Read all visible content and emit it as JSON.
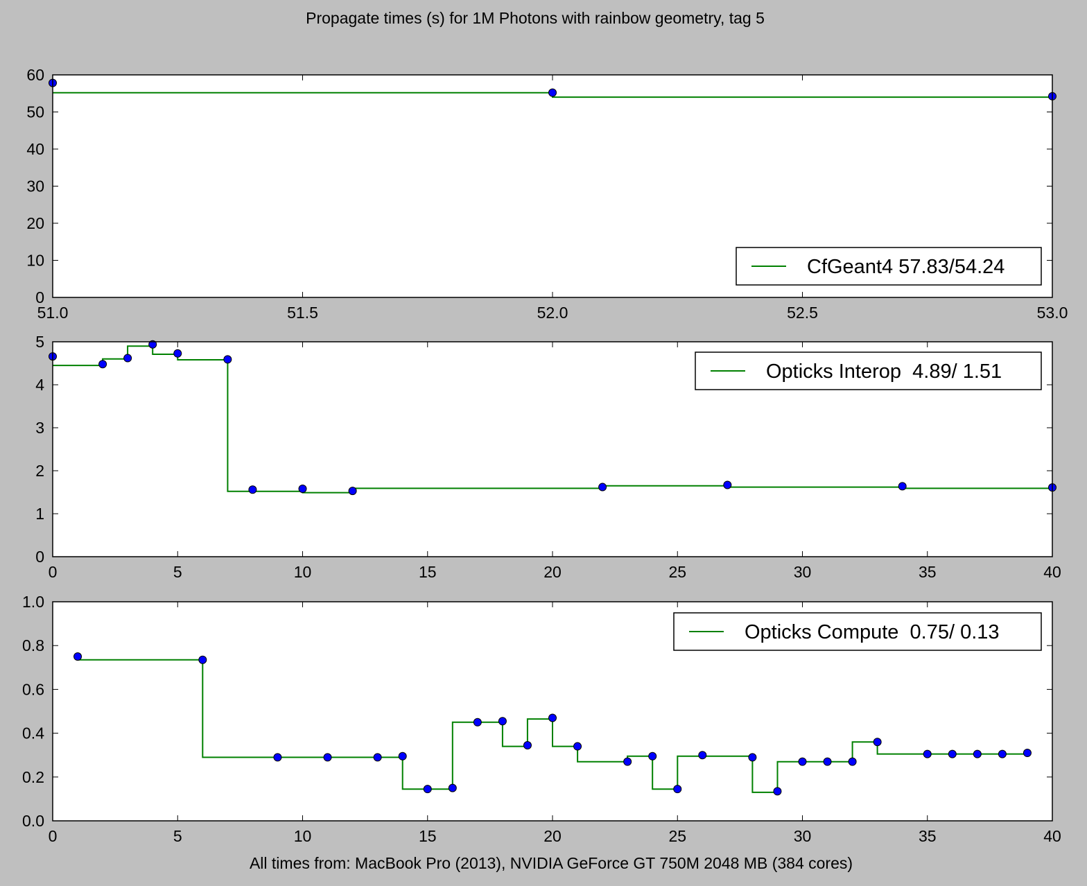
{
  "chart_data": {
    "title": "Propagate times (s) for 1M Photons with rainbow geometry, tag 5",
    "xlabel": "All times from: MacBook Pro (2013), NVIDIA GeForce GT 750M 2048 MB (384 cores)",
    "colors": {
      "line": "#008000",
      "marker": "#0000ff",
      "background": "#bfbfbf",
      "axes": "#ffffff"
    },
    "panels": [
      {
        "type": "line",
        "legend": "CfGeant4 57.83/54.24",
        "legend_loc": "lower-right",
        "xlim": [
          51.0,
          53.0
        ],
        "ylim": [
          0,
          60
        ],
        "xticks": [
          "51.0",
          "51.5",
          "52.0",
          "52.5",
          "53.0"
        ],
        "yticks": [
          "0",
          "10",
          "20",
          "30",
          "40",
          "50",
          "60"
        ],
        "points": {
          "x": [
            51,
            52,
            53
          ],
          "y": [
            57.83,
            55.2,
            54.24
          ]
        },
        "steps": [
          {
            "x0": 51,
            "x1": 52,
            "y": 55.2
          },
          {
            "x0": 52,
            "x1": 53,
            "y": 54.0
          }
        ]
      },
      {
        "type": "line",
        "legend": "Opticks Interop  4.89/ 1.51",
        "legend_loc": "upper-right",
        "xlim": [
          0,
          40
        ],
        "ylim": [
          0,
          5
        ],
        "xticks": [
          "0",
          "5",
          "10",
          "15",
          "20",
          "25",
          "30",
          "35",
          "40"
        ],
        "yticks": [
          "0",
          "1",
          "2",
          "3",
          "4",
          "5"
        ],
        "points": {
          "x": [
            0,
            2,
            3,
            4,
            5,
            7,
            8,
            10,
            12,
            22,
            27,
            34,
            40
          ],
          "y": [
            4.66,
            4.48,
            4.62,
            4.94,
            4.73,
            4.59,
            1.56,
            1.58,
            1.53,
            1.62,
            1.67,
            1.64,
            1.61
          ]
        },
        "steps": [
          {
            "x0": 0,
            "x1": 2,
            "y": 4.45
          },
          {
            "x0": 2,
            "x1": 3,
            "y": 4.6
          },
          {
            "x0": 3,
            "x1": 4,
            "y": 4.9
          },
          {
            "x0": 4,
            "x1": 5,
            "y": 4.71
          },
          {
            "x0": 5,
            "x1": 7,
            "y": 4.58
          },
          {
            "x0": 7,
            "x1": 10,
            "y": 1.52
          },
          {
            "x0": 10,
            "x1": 12,
            "y": 1.49
          },
          {
            "x0": 12,
            "x1": 22,
            "y": 1.59
          },
          {
            "x0": 22,
            "x1": 27,
            "y": 1.65
          },
          {
            "x0": 27,
            "x1": 34,
            "y": 1.62
          },
          {
            "x0": 34,
            "x1": 40,
            "y": 1.59
          }
        ]
      },
      {
        "type": "line",
        "legend": "Opticks Compute  0.75/ 0.13",
        "legend_loc": "upper-right",
        "xlim": [
          0,
          40
        ],
        "ylim": [
          0.0,
          1.0
        ],
        "xticks": [
          "0",
          "5",
          "10",
          "15",
          "20",
          "25",
          "30",
          "35",
          "40"
        ],
        "yticks": [
          "0.0",
          "0.2",
          "0.4",
          "0.6",
          "0.8",
          "1.0"
        ],
        "points": {
          "x": [
            1,
            6,
            9,
            11,
            13,
            14,
            15,
            16,
            17,
            18,
            19,
            20,
            21,
            23,
            24,
            25,
            26,
            28,
            29,
            30,
            31,
            32,
            33,
            35,
            36,
            37,
            38,
            39
          ],
          "y": [
            0.75,
            0.735,
            0.29,
            0.29,
            0.29,
            0.295,
            0.145,
            0.15,
            0.45,
            0.455,
            0.345,
            0.47,
            0.34,
            0.27,
            0.295,
            0.145,
            0.3,
            0.29,
            0.135,
            0.27,
            0.27,
            0.27,
            0.36,
            0.305,
            0.305,
            0.305,
            0.305,
            0.31
          ]
        },
        "steps": [
          {
            "x0": 1,
            "x1": 6,
            "y": 0.735
          },
          {
            "x0": 6,
            "x1": 14,
            "y": 0.29
          },
          {
            "x0": 14,
            "x1": 16,
            "y": 0.145
          },
          {
            "x0": 16,
            "x1": 18,
            "y": 0.45
          },
          {
            "x0": 18,
            "x1": 19,
            "y": 0.34
          },
          {
            "x0": 19,
            "x1": 20,
            "y": 0.465
          },
          {
            "x0": 20,
            "x1": 21,
            "y": 0.34
          },
          {
            "x0": 21,
            "x1": 23,
            "y": 0.27
          },
          {
            "x0": 23,
            "x1": 24,
            "y": 0.295
          },
          {
            "x0": 24,
            "x1": 25,
            "y": 0.145
          },
          {
            "x0": 25,
            "x1": 28,
            "y": 0.295
          },
          {
            "x0": 28,
            "x1": 29,
            "y": 0.13
          },
          {
            "x0": 29,
            "x1": 32,
            "y": 0.27
          },
          {
            "x0": 32,
            "x1": 33,
            "y": 0.36
          },
          {
            "x0": 33,
            "x1": 39,
            "y": 0.305
          }
        ]
      }
    ]
  }
}
